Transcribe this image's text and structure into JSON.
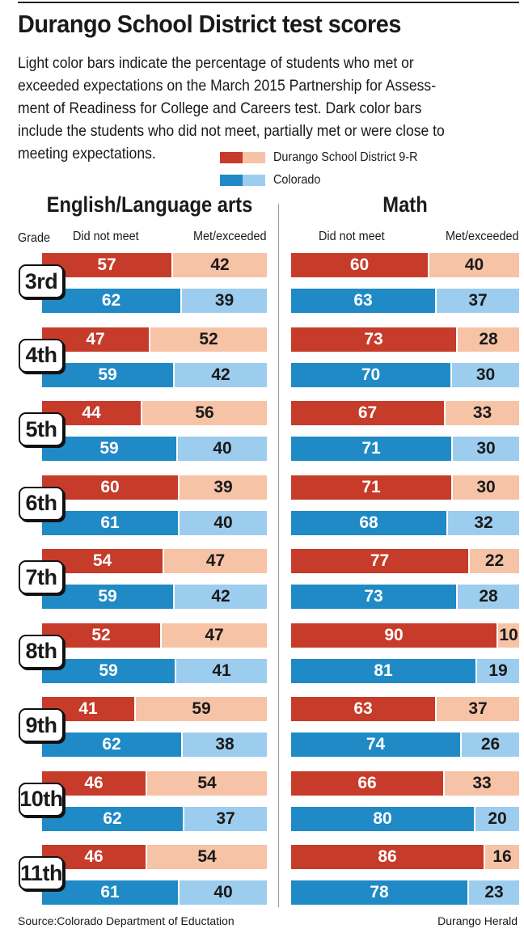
{
  "title": "Durango School District test scores",
  "description_lines": [
    "Light color bars indicate the percentage of students who met or",
    "exceeded expectations on the March 2015 Partnership for Assess-",
    "ment of Readiness for College and Careers test. Dark color bars",
    "include the students who did not meet, partially met or were close to",
    "meeting expectations."
  ],
  "legend": {
    "district": "Durango School District 9-R",
    "state": "Colorado"
  },
  "colors": {
    "district_dark": "#c63b2a",
    "district_light": "#f7c3a6",
    "state_dark": "#1f8ac6",
    "state_light": "#9dcdee"
  },
  "grade_header": "Grade",
  "footer": {
    "source": "Source:Colorado Department of Eductation",
    "credit": "Durango Herald"
  },
  "chart_data": [
    {
      "type": "bar",
      "title": "English/Language arts",
      "orientation": "horizontal",
      "stacked": true,
      "column_labels": [
        "Did not meet",
        "Met/exceeded"
      ],
      "categories": [
        "3rd",
        "4th",
        "5th",
        "6th",
        "7th",
        "8th",
        "9th",
        "10th",
        "11th"
      ],
      "series": [
        {
          "name": "Durango School District 9-R",
          "did_not_meet": [
            57,
            47,
            44,
            60,
            54,
            52,
            41,
            46,
            46
          ],
          "met_exceeded": [
            42,
            52,
            56,
            39,
            47,
            47,
            59,
            54,
            54
          ]
        },
        {
          "name": "Colorado",
          "did_not_meet": [
            62,
            59,
            59,
            61,
            59,
            59,
            62,
            62,
            61
          ],
          "met_exceeded": [
            39,
            42,
            40,
            40,
            42,
            41,
            38,
            37,
            40
          ]
        }
      ]
    },
    {
      "type": "bar",
      "title": "Math",
      "orientation": "horizontal",
      "stacked": true,
      "column_labels": [
        "Did not meet",
        "Met/exceeded"
      ],
      "categories": [
        "3rd",
        "4th",
        "5th",
        "6th",
        "7th",
        "8th",
        "9th",
        "10th",
        "11th"
      ],
      "series": [
        {
          "name": "Durango School District 9-R",
          "did_not_meet": [
            60,
            73,
            67,
            71,
            77,
            90,
            63,
            66,
            86
          ],
          "met_exceeded": [
            40,
            28,
            33,
            30,
            22,
            10,
            37,
            33,
            16
          ]
        },
        {
          "name": "Colorado",
          "did_not_meet": [
            63,
            70,
            71,
            68,
            73,
            81,
            74,
            80,
            78
          ],
          "met_exceeded": [
            37,
            30,
            30,
            32,
            28,
            19,
            26,
            20,
            23
          ]
        }
      ]
    }
  ]
}
